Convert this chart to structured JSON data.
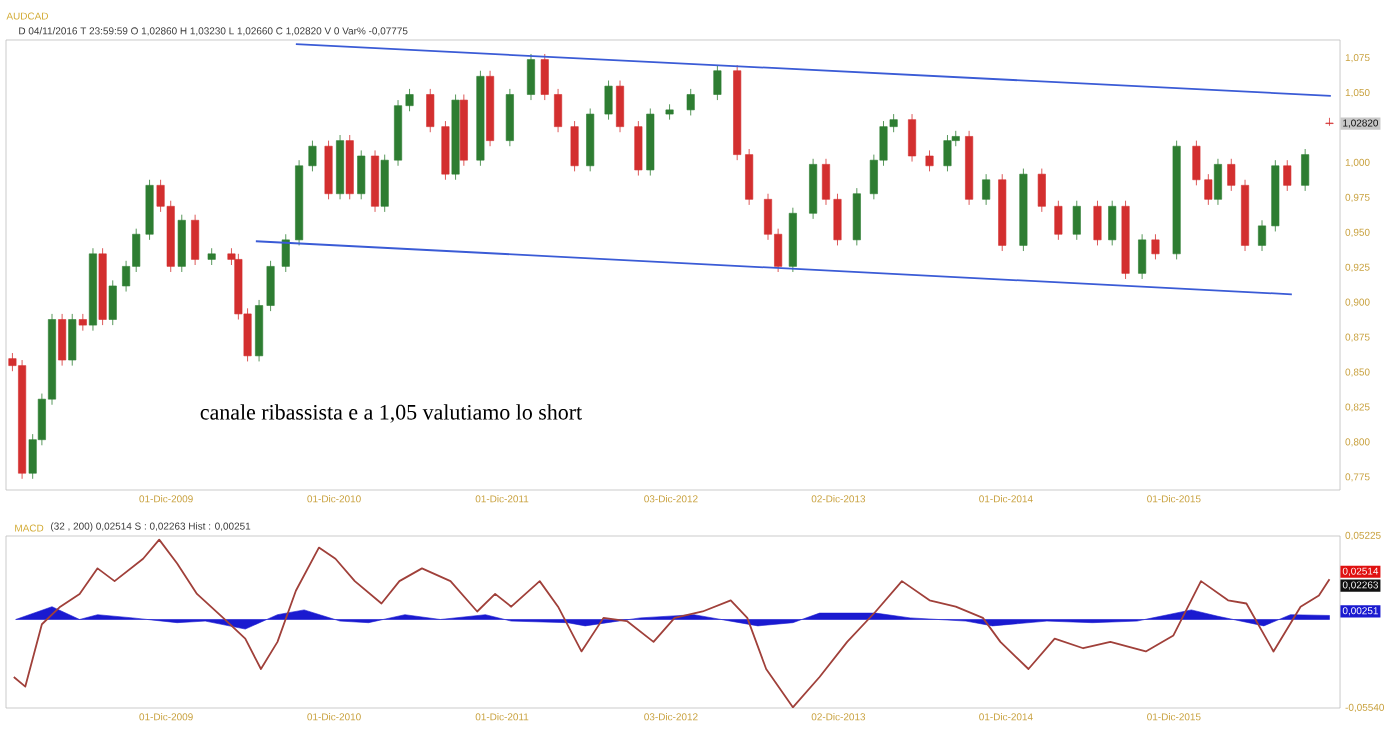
{
  "chart_data": [
    {
      "type": "candlestick",
      "title": "AUDCAD",
      "annotations": [
        "D 04/11/2016  T 23:59:59  O 1,02860  H 1,03230  L 1,02660  C 1,02820  V 0  Var% -0,07775",
        "canale ribassista e a 1,05 valutiamo lo short",
        {
          "text": "1,02820",
          "y": 1.0282
        }
      ],
      "x": [
        "2009-01-01",
        "2009-01-22",
        "2009-02-14",
        "2009-03-06",
        "2009-03-28",
        "2009-04-19",
        "2009-05-11",
        "2009-06-03",
        "2009-06-25",
        "2009-07-16",
        "2009-08-07",
        "2009-09-05",
        "2009-09-27",
        "2009-10-26",
        "2009-11-19",
        "2009-12-11",
        "2010-01-04",
        "2010-02-02",
        "2010-03-10",
        "2010-04-22",
        "2010-05-07",
        "2010-05-27",
        "2010-06-21",
        "2010-07-16",
        "2010-08-18",
        "2010-09-16",
        "2010-10-15",
        "2010-11-19",
        "2010-12-14",
        "2011-01-04",
        "2011-01-29",
        "2011-02-28",
        "2011-03-21",
        "2011-04-19",
        "2011-05-14",
        "2011-06-28",
        "2011-07-31",
        "2011-08-22",
        "2011-09-09",
        "2011-10-15",
        "2011-11-05",
        "2011-12-18",
        "2012-02-02",
        "2012-03-03",
        "2012-04-01",
        "2012-05-07",
        "2012-06-10",
        "2012-07-20",
        "2012-08-14",
        "2012-09-23",
        "2012-10-19",
        "2012-11-30",
        "2013-01-15",
        "2013-03-14",
        "2013-04-26",
        "2013-05-22",
        "2013-07-02",
        "2013-07-24",
        "2013-08-25",
        "2013-10-08",
        "2013-11-05",
        "2013-11-30",
        "2014-01-11",
        "2014-02-17",
        "2014-03-10",
        "2014-04-01",
        "2014-05-11",
        "2014-06-18",
        "2014-07-27",
        "2014-08-14",
        "2014-09-12",
        "2014-10-19",
        "2014-11-23",
        "2015-01-08",
        "2015-02-17",
        "2015-03-25",
        "2015-05-04",
        "2015-06-18",
        "2015-07-20",
        "2015-08-18",
        "2015-09-23",
        "2015-10-22",
        "2015-12-07",
        "2016-01-19",
        "2016-02-14",
        "2016-03-06",
        "2016-04-04",
        "2016-05-04",
        "2016-06-10",
        "2016-07-09",
        "2016-08-04",
        "2016-09-12",
        "2016-11-04"
      ],
      "ohlc": [
        [
          0.86,
          0.864,
          0.851,
          0.855
        ],
        [
          0.855,
          0.859,
          0.774,
          0.778
        ],
        [
          0.778,
          0.806,
          0.774,
          0.802
        ],
        [
          0.802,
          0.835,
          0.798,
          0.831
        ],
        [
          0.831,
          0.892,
          0.827,
          0.888
        ],
        [
          0.888,
          0.892,
          0.855,
          0.859
        ],
        [
          0.859,
          0.892,
          0.855,
          0.888
        ],
        [
          0.888,
          0.892,
          0.88,
          0.884
        ],
        [
          0.884,
          0.939,
          0.88,
          0.935
        ],
        [
          0.935,
          0.939,
          0.884,
          0.888
        ],
        [
          0.888,
          0.916,
          0.884,
          0.912
        ],
        [
          0.912,
          0.93,
          0.908,
          0.926
        ],
        [
          0.926,
          0.953,
          0.922,
          0.949
        ],
        [
          0.949,
          0.988,
          0.945,
          0.984
        ],
        [
          0.984,
          0.988,
          0.965,
          0.969
        ],
        [
          0.969,
          0.973,
          0.922,
          0.926
        ],
        [
          0.926,
          0.963,
          0.922,
          0.959
        ],
        [
          0.959,
          0.963,
          0.927,
          0.931
        ],
        [
          0.931,
          0.939,
          0.927,
          0.935
        ],
        [
          0.935,
          0.939,
          0.927,
          0.931
        ],
        [
          0.931,
          0.935,
          0.888,
          0.892
        ],
        [
          0.892,
          0.896,
          0.858,
          0.862
        ],
        [
          0.862,
          0.902,
          0.858,
          0.898
        ],
        [
          0.898,
          0.93,
          0.894,
          0.926
        ],
        [
          0.926,
          0.949,
          0.922,
          0.945
        ],
        [
          0.945,
          1.002,
          0.941,
          0.998
        ],
        [
          0.998,
          1.016,
          0.994,
          1.012
        ],
        [
          1.012,
          1.016,
          0.974,
          0.978
        ],
        [
          0.978,
          1.02,
          0.974,
          1.016
        ],
        [
          1.016,
          1.02,
          0.974,
          0.978
        ],
        [
          0.978,
          1.009,
          0.974,
          1.005
        ],
        [
          1.005,
          1.009,
          0.965,
          0.969
        ],
        [
          0.969,
          1.006,
          0.965,
          1.002
        ],
        [
          1.002,
          1.045,
          0.998,
          1.041
        ],
        [
          1.041,
          1.053,
          1.037,
          1.049
        ],
        [
          1.049,
          1.053,
          1.022,
          1.026
        ],
        [
          1.026,
          1.03,
          0.988,
          0.992
        ],
        [
          0.992,
          1.049,
          0.988,
          1.045
        ],
        [
          1.045,
          1.049,
          0.998,
          1.002
        ],
        [
          1.002,
          1.066,
          0.998,
          1.062
        ],
        [
          1.062,
          1.066,
          1.012,
          1.016
        ],
        [
          1.016,
          1.053,
          1.012,
          1.049
        ],
        [
          1.049,
          1.078,
          1.045,
          1.074
        ],
        [
          1.074,
          1.078,
          1.045,
          1.049
        ],
        [
          1.049,
          1.053,
          1.022,
          1.026
        ],
        [
          1.026,
          1.03,
          0.994,
          0.998
        ],
        [
          0.998,
          1.039,
          0.994,
          1.035
        ],
        [
          1.035,
          1.059,
          1.031,
          1.055
        ],
        [
          1.055,
          1.059,
          1.022,
          1.026
        ],
        [
          1.026,
          1.03,
          0.991,
          0.995
        ],
        [
          0.995,
          1.039,
          0.991,
          1.035
        ],
        [
          1.035,
          1.042,
          1.031,
          1.038
        ],
        [
          1.038,
          1.053,
          1.034,
          1.049
        ],
        [
          1.049,
          1.07,
          1.045,
          1.066
        ],
        [
          1.066,
          1.07,
          1.002,
          1.006
        ],
        [
          1.006,
          1.01,
          0.97,
          0.974
        ],
        [
          0.974,
          0.978,
          0.945,
          0.949
        ],
        [
          0.949,
          0.953,
          0.922,
          0.926
        ],
        [
          0.926,
          0.968,
          0.922,
          0.964
        ],
        [
          0.964,
          1.003,
          0.96,
          0.999
        ],
        [
          0.999,
          1.003,
          0.97,
          0.974
        ],
        [
          0.974,
          0.978,
          0.941,
          0.945
        ],
        [
          0.945,
          0.982,
          0.941,
          0.978
        ],
        [
          0.978,
          1.006,
          0.974,
          1.002
        ],
        [
          1.002,
          1.03,
          0.998,
          1.026
        ],
        [
          1.026,
          1.035,
          1.022,
          1.031
        ],
        [
          1.031,
          1.035,
          1.001,
          1.005
        ],
        [
          1.005,
          1.009,
          0.994,
          0.998
        ],
        [
          0.998,
          1.02,
          0.994,
          1.016
        ],
        [
          1.016,
          1.023,
          1.012,
          1.019
        ],
        [
          1.019,
          1.023,
          0.97,
          0.974
        ],
        [
          0.974,
          0.992,
          0.97,
          0.988
        ],
        [
          0.988,
          0.992,
          0.937,
          0.941
        ],
        [
          0.941,
          0.996,
          0.937,
          0.992
        ],
        [
          0.992,
          0.996,
          0.965,
          0.969
        ],
        [
          0.969,
          0.973,
          0.945,
          0.949
        ],
        [
          0.949,
          0.973,
          0.945,
          0.969
        ],
        [
          0.969,
          0.973,
          0.941,
          0.945
        ],
        [
          0.945,
          0.973,
          0.941,
          0.969
        ],
        [
          0.969,
          0.973,
          0.917,
          0.921
        ],
        [
          0.921,
          0.949,
          0.917,
          0.945
        ],
        [
          0.945,
          0.949,
          0.931,
          0.935
        ],
        [
          0.935,
          1.016,
          0.931,
          1.012
        ],
        [
          1.012,
          1.016,
          0.984,
          0.988
        ],
        [
          0.988,
          0.992,
          0.97,
          0.974
        ],
        [
          0.974,
          1.003,
          0.97,
          0.999
        ],
        [
          0.999,
          1.003,
          0.98,
          0.984
        ],
        [
          0.984,
          0.988,
          0.937,
          0.941
        ],
        [
          0.941,
          0.959,
          0.937,
          0.955
        ],
        [
          0.955,
          1.002,
          0.951,
          0.998
        ],
        [
          0.998,
          1.002,
          0.98,
          0.984
        ],
        [
          0.984,
          1.01,
          0.98,
          1.006
        ],
        [
          1.0286,
          1.0323,
          1.0266,
          1.0282
        ]
      ],
      "colors": [
        "#d32f2f",
        "#d32f2f",
        "#2e7d32",
        "#2e7d32",
        "#2e7d32",
        "#d32f2f",
        "#2e7d32",
        "#d32f2f",
        "#2e7d32",
        "#d32f2f",
        "#2e7d32",
        "#2e7d32",
        "#2e7d32",
        "#2e7d32",
        "#d32f2f",
        "#d32f2f",
        "#2e7d32",
        "#d32f2f",
        "#2e7d32",
        "#d32f2f",
        "#d32f2f",
        "#d32f2f",
        "#2e7d32",
        "#2e7d32",
        "#2e7d32",
        "#2e7d32",
        "#2e7d32",
        "#d32f2f",
        "#2e7d32",
        "#d32f2f",
        "#2e7d32",
        "#d32f2f",
        "#2e7d32",
        "#2e7d32",
        "#2e7d32",
        "#d32f2f",
        "#d32f2f",
        "#2e7d32",
        "#d32f2f",
        "#2e7d32",
        "#d32f2f",
        "#2e7d32",
        "#2e7d32",
        "#d32f2f",
        "#d32f2f",
        "#d32f2f",
        "#2e7d32",
        "#2e7d32",
        "#d32f2f",
        "#d32f2f",
        "#2e7d32",
        "#2e7d32",
        "#2e7d32",
        "#2e7d32",
        "#d32f2f",
        "#d32f2f",
        "#d32f2f",
        "#d32f2f",
        "#2e7d32",
        "#2e7d32",
        "#d32f2f",
        "#d32f2f",
        "#2e7d32",
        "#2e7d32",
        "#2e7d32",
        "#2e7d32",
        "#d32f2f",
        "#d32f2f",
        "#2e7d32",
        "#2e7d32",
        "#d32f2f",
        "#2e7d32",
        "#d32f2f",
        "#2e7d32",
        "#d32f2f",
        "#d32f2f",
        "#2e7d32",
        "#d32f2f",
        "#2e7d32",
        "#d32f2f",
        "#2e7d32",
        "#d32f2f",
        "#2e7d32",
        "#d32f2f",
        "#d32f2f",
        "#2e7d32",
        "#d32f2f",
        "#d32f2f",
        "#2e7d32",
        "#2e7d32",
        "#d32f2f",
        "#2e7d32",
        "#d32f2f"
      ],
      "series": [
        {
          "type": "line",
          "color": "#3a5bd6",
          "x": [
            "2010-09-09",
            "2016-11-07"
          ],
          "values": [
            1.085,
            1.048
          ]
        },
        {
          "type": "line",
          "color": "#3a5bd6",
          "x": [
            "2010-06-14",
            "2016-08-14"
          ],
          "values": [
            0.944,
            0.906
          ]
        }
      ],
      "xlim": [
        "2008-12-18",
        "2016-11-27"
      ],
      "ylim": [
        0.766,
        1.088
      ],
      "xticks": [
        {
          "value": "2009-12-01",
          "label": "01-Dic-2009"
        },
        {
          "value": "2010-12-01",
          "label": "01-Dic-2010"
        },
        {
          "value": "2011-12-01",
          "label": "01-Dic-2011"
        },
        {
          "value": "2012-12-03",
          "label": "03-Dic-2012"
        },
        {
          "value": "2013-12-02",
          "label": "02-Dic-2013"
        },
        {
          "value": "2014-12-01",
          "label": "01-Dic-2014"
        },
        {
          "value": "2015-12-01",
          "label": "01-Dic-2015"
        }
      ],
      "yticks": [
        {
          "value": 1.075,
          "label": "1,075"
        },
        {
          "value": 1.05,
          "label": "1,050"
        },
        {
          "value": 1.0,
          "label": "1,000"
        },
        {
          "value": 0.975,
          "label": "0,975"
        },
        {
          "value": 0.95,
          "label": "0,950"
        },
        {
          "value": 0.925,
          "label": "0,925"
        },
        {
          "value": 0.9,
          "label": "0,900"
        },
        {
          "value": 0.875,
          "label": "0,875"
        },
        {
          "value": 0.85,
          "label": "0,850"
        },
        {
          "value": 0.825,
          "label": "0,825"
        },
        {
          "value": 0.8,
          "label": "0,800"
        },
        {
          "value": 0.775,
          "label": "0,775"
        }
      ]
    },
    {
      "type": "line",
      "title": "MACD",
      "annotations": [
        "(32 , 200)   0,02514   S : 0,02263   Hist : 0,00251",
        "0,02514",
        "0,02263",
        "0,00251"
      ],
      "series": [
        {
          "type": "area",
          "color": "#1a1ad0",
          "x": [
            "2009-01-08",
            "2009-03-28",
            "2009-05-27",
            "2009-07-05",
            "2009-09-19",
            "2009-12-25",
            "2010-02-24",
            "2010-05-22",
            "2010-07-31",
            "2010-09-27",
            "2010-12-14",
            "2011-02-14",
            "2011-05-04",
            "2011-07-20",
            "2011-10-26",
            "2011-12-21",
            "2012-04-22",
            "2012-05-30",
            "2012-09-27",
            "2013-01-22",
            "2013-06-10",
            "2013-08-25",
            "2013-10-22",
            "2014-02-21",
            "2014-05-07",
            "2014-09-05",
            "2014-11-02",
            "2015-02-28",
            "2015-06-07",
            "2015-09-12",
            "2016-01-08",
            "2016-03-06",
            "2016-06-14",
            "2016-08-11",
            "2016-11-04"
          ],
          "values": [
            0,
            0.008,
            0,
            0.003,
            0.001,
            -0.002,
            -0.001,
            -0.006,
            0.003,
            0.006,
            -0.001,
            -0.002,
            0.003,
            0,
            0.003,
            -0.001,
            -0.002,
            -0.004,
            0.001,
            0.003,
            -0.004,
            -0.002,
            0.004,
            0.004,
            0.001,
            -0.001,
            -0.004,
            -0.001,
            -0.002,
            -0.001,
            0.006,
            0.002,
            -0.004,
            0.003,
            0.00251
          ]
        },
        {
          "type": "line",
          "color": "#a0403a",
          "x": [
            "2009-01-04",
            "2009-01-29",
            "2009-03-06",
            "2009-04-15",
            "2009-05-27",
            "2009-07-05",
            "2009-08-11",
            "2009-10-12",
            "2009-11-16",
            "2009-12-25",
            "2010-02-06",
            "2010-04-04",
            "2010-05-22",
            "2010-06-25",
            "2010-07-31",
            "2010-09-09",
            "2010-10-29",
            "2010-12-04",
            "2011-01-15",
            "2011-03-14",
            "2011-04-22",
            "2011-06-10",
            "2011-08-11",
            "2011-10-08",
            "2011-11-16",
            "2011-12-21",
            "2012-02-21",
            "2012-04-01",
            "2012-05-22",
            "2012-07-09",
            "2012-08-29",
            "2012-10-26",
            "2012-12-11",
            "2013-02-10",
            "2013-04-12",
            "2013-05-18",
            "2013-06-28",
            "2013-08-25",
            "2013-10-22",
            "2013-12-21",
            "2014-02-21",
            "2014-04-19",
            "2014-06-18",
            "2014-08-14",
            "2014-10-12",
            "2014-11-19",
            "2015-01-19",
            "2015-03-17",
            "2015-05-18",
            "2015-07-16",
            "2015-10-01",
            "2015-11-30",
            "2016-01-29",
            "2016-03-28",
            "2016-05-07",
            "2016-07-05",
            "2016-09-02",
            "2016-10-12",
            "2016-11-04"
          ],
          "values": [
            -0.036,
            -0.042,
            -0.003,
            0.008,
            0.016,
            0.032,
            0.024,
            0.038,
            0.05,
            0.035,
            0.016,
            0.001,
            -0.012,
            -0.031,
            -0.014,
            0.018,
            0.045,
            0.038,
            0.024,
            0.01,
            0.024,
            0.032,
            0.024,
            0.005,
            0.016,
            0.008,
            0.024,
            0.008,
            -0.02,
            0.001,
            -0.001,
            -0.014,
            0.001,
            0.005,
            0.012,
            0.001,
            -0.031,
            -0.055,
            -0.036,
            -0.014,
            0.005,
            0.024,
            0.012,
            0.008,
            0.001,
            -0.014,
            -0.031,
            -0.012,
            -0.018,
            -0.014,
            -0.02,
            -0.01,
            0.024,
            0.012,
            0.01,
            -0.02,
            0.008,
            0.015,
            0.02514
          ]
        }
      ],
      "xlim": [
        "2008-12-18",
        "2016-11-27"
      ],
      "ylim": [
        -0.0554,
        0.05225
      ],
      "xticks": [
        {
          "value": "2009-12-01",
          "label": "01-Dic-2009"
        },
        {
          "value": "2010-12-01",
          "label": "01-Dic-2010"
        },
        {
          "value": "2011-12-01",
          "label": "01-Dic-2011"
        },
        {
          "value": "2012-12-03",
          "label": "03-Dic-2012"
        },
        {
          "value": "2013-12-02",
          "label": "02-Dic-2013"
        },
        {
          "value": "2014-12-01",
          "label": "01-Dic-2014"
        },
        {
          "value": "2015-12-01",
          "label": "01-Dic-2015"
        }
      ],
      "yticks": [
        {
          "value": 0.05225,
          "label": "0,05225"
        },
        {
          "value": -0.0554,
          "label": "-0,05540"
        }
      ]
    }
  ]
}
